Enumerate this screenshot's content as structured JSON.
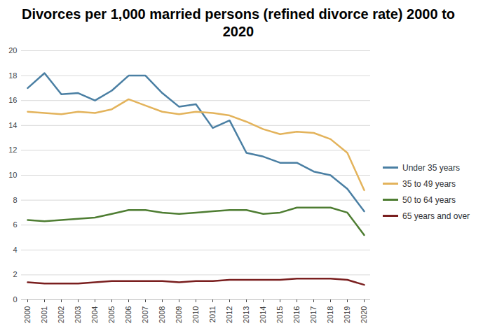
{
  "chart_data": {
    "type": "line",
    "title": "Divorces per 1,000 married persons (refined divorce rate) 2000 to 2020",
    "categories": [
      "2000",
      "2001",
      "2002",
      "2003",
      "2004",
      "2005",
      "2006",
      "2007",
      "2008",
      "2009",
      "2010",
      "2011",
      "2012",
      "2013",
      "2014",
      "2015",
      "2016",
      "2017",
      "2018",
      "2019",
      "2020"
    ],
    "series": [
      {
        "name": "Under 35 years",
        "color": "#4a7fa3",
        "values": [
          17.0,
          18.2,
          16.5,
          16.6,
          16.0,
          16.8,
          18.0,
          18.0,
          16.6,
          15.5,
          15.7,
          13.8,
          14.4,
          11.8,
          11.5,
          11.0,
          11.0,
          10.3,
          10.0,
          8.9,
          7.1
        ]
      },
      {
        "name": "35 to 49 years",
        "color": "#e3b35b",
        "values": [
          15.1,
          15.0,
          14.9,
          15.1,
          15.0,
          15.3,
          16.1,
          15.6,
          15.1,
          14.9,
          15.1,
          15.0,
          14.8,
          14.3,
          13.7,
          13.3,
          13.5,
          13.4,
          12.9,
          11.8,
          8.8
        ]
      },
      {
        "name": "50 to 64 years",
        "color": "#4e7d32",
        "values": [
          6.4,
          6.3,
          6.4,
          6.5,
          6.6,
          6.9,
          7.2,
          7.2,
          7.0,
          6.9,
          7.0,
          7.1,
          7.2,
          7.2,
          6.9,
          7.0,
          7.4,
          7.4,
          7.4,
          7.0,
          5.2
        ]
      },
      {
        "name": "65 years and over",
        "color": "#7a1f1f",
        "values": [
          1.4,
          1.3,
          1.3,
          1.3,
          1.4,
          1.5,
          1.5,
          1.5,
          1.5,
          1.4,
          1.5,
          1.5,
          1.6,
          1.6,
          1.6,
          1.6,
          1.7,
          1.7,
          1.7,
          1.6,
          1.2
        ]
      }
    ],
    "ylim": [
      0,
      20
    ],
    "yticks": [
      0,
      2,
      4,
      6,
      8,
      10,
      12,
      14,
      16,
      18,
      20
    ],
    "grid": true,
    "legend": "right"
  }
}
